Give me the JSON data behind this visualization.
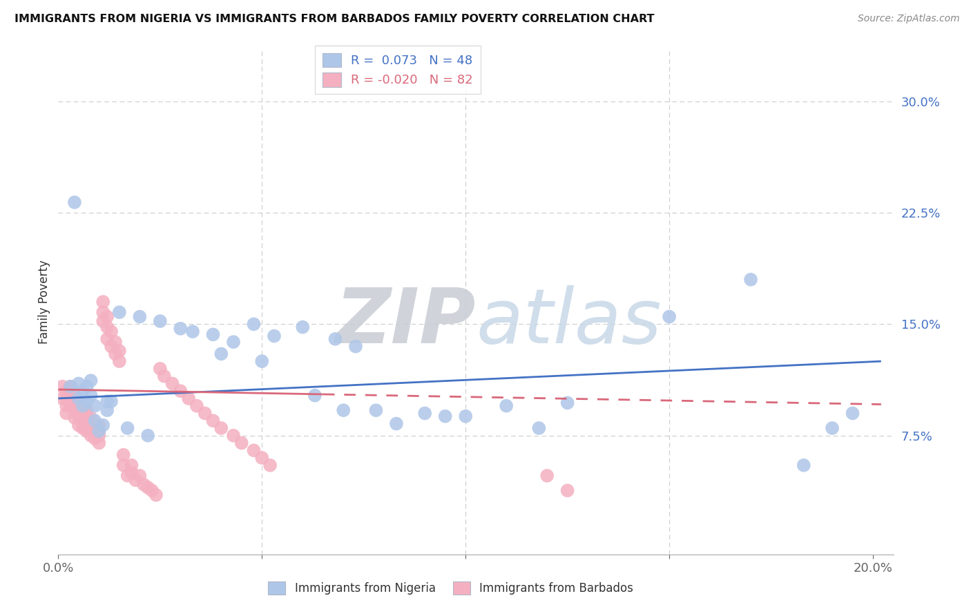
{
  "title": "IMMIGRANTS FROM NIGERIA VS IMMIGRANTS FROM BARBADOS FAMILY POVERTY CORRELATION CHART",
  "source": "Source: ZipAtlas.com",
  "ylabel": "Family Poverty",
  "xlim": [
    0.0,
    0.205
  ],
  "ylim": [
    -0.005,
    0.335
  ],
  "ytick_vals": [
    0.0,
    0.075,
    0.15,
    0.225,
    0.3
  ],
  "ytick_labels": [
    "",
    "7.5%",
    "15.0%",
    "22.5%",
    "30.0%"
  ],
  "xtick_vals": [
    0.0,
    0.05,
    0.1,
    0.15,
    0.2
  ],
  "xtick_labels": [
    "0.0%",
    "",
    "",
    "",
    "20.0%"
  ],
  "nigeria_face_color": "#aec6e8",
  "barbados_face_color": "#f4b0c0",
  "nigeria_line_color": "#4472c4",
  "barbados_line_color": "#d9687a",
  "watermark_zip": "ZIP",
  "watermark_atlas": "atlas",
  "nigeria_x": [
    0.003,
    0.004,
    0.005,
    0.005,
    0.006,
    0.006,
    0.007,
    0.007,
    0.008,
    0.008,
    0.009,
    0.009,
    0.01,
    0.011,
    0.012,
    0.012,
    0.013,
    0.015,
    0.017,
    0.02,
    0.022,
    0.025,
    0.03,
    0.033,
    0.038,
    0.04,
    0.043,
    0.048,
    0.05,
    0.053,
    0.06,
    0.063,
    0.068,
    0.07,
    0.073,
    0.078,
    0.083,
    0.09,
    0.095,
    0.1,
    0.11,
    0.118,
    0.125,
    0.15,
    0.17,
    0.183,
    0.19,
    0.195
  ],
  "nigeria_y": [
    0.108,
    0.232,
    0.1,
    0.11,
    0.095,
    0.105,
    0.098,
    0.108,
    0.102,
    0.112,
    0.095,
    0.085,
    0.078,
    0.082,
    0.092,
    0.098,
    0.098,
    0.158,
    0.08,
    0.155,
    0.075,
    0.152,
    0.147,
    0.145,
    0.143,
    0.13,
    0.138,
    0.15,
    0.125,
    0.142,
    0.148,
    0.102,
    0.14,
    0.092,
    0.135,
    0.092,
    0.083,
    0.09,
    0.088,
    0.088,
    0.095,
    0.08,
    0.097,
    0.155,
    0.18,
    0.055,
    0.08,
    0.09
  ],
  "barbados_x": [
    0.001,
    0.001,
    0.002,
    0.002,
    0.002,
    0.002,
    0.003,
    0.003,
    0.003,
    0.003,
    0.003,
    0.004,
    0.004,
    0.004,
    0.004,
    0.004,
    0.005,
    0.005,
    0.005,
    0.005,
    0.005,
    0.005,
    0.006,
    0.006,
    0.006,
    0.006,
    0.006,
    0.007,
    0.007,
    0.007,
    0.007,
    0.007,
    0.008,
    0.008,
    0.008,
    0.008,
    0.009,
    0.009,
    0.009,
    0.01,
    0.01,
    0.01,
    0.01,
    0.011,
    0.011,
    0.011,
    0.012,
    0.012,
    0.012,
    0.013,
    0.013,
    0.014,
    0.014,
    0.015,
    0.015,
    0.016,
    0.016,
    0.017,
    0.018,
    0.018,
    0.019,
    0.02,
    0.021,
    0.022,
    0.023,
    0.024,
    0.025,
    0.026,
    0.028,
    0.03,
    0.032,
    0.034,
    0.036,
    0.038,
    0.04,
    0.043,
    0.045,
    0.048,
    0.05,
    0.052,
    0.12,
    0.125
  ],
  "barbados_y": [
    0.1,
    0.108,
    0.09,
    0.095,
    0.1,
    0.105,
    0.095,
    0.098,
    0.1,
    0.105,
    0.108,
    0.087,
    0.092,
    0.095,
    0.098,
    0.102,
    0.082,
    0.088,
    0.09,
    0.092,
    0.095,
    0.098,
    0.08,
    0.083,
    0.087,
    0.09,
    0.093,
    0.078,
    0.082,
    0.085,
    0.088,
    0.092,
    0.075,
    0.08,
    0.083,
    0.087,
    0.073,
    0.078,
    0.082,
    0.07,
    0.075,
    0.078,
    0.082,
    0.152,
    0.158,
    0.165,
    0.14,
    0.148,
    0.155,
    0.135,
    0.145,
    0.13,
    0.138,
    0.125,
    0.132,
    0.055,
    0.062,
    0.048,
    0.05,
    0.055,
    0.045,
    0.048,
    0.042,
    0.04,
    0.038,
    0.035,
    0.12,
    0.115,
    0.11,
    0.105,
    0.1,
    0.095,
    0.09,
    0.085,
    0.08,
    0.075,
    0.07,
    0.065,
    0.06,
    0.055,
    0.048,
    0.038
  ],
  "legend_r_nigeria": " 0.073",
  "legend_n_nigeria": "48",
  "legend_r_barbados": "-0.020",
  "legend_n_barbados": "82"
}
